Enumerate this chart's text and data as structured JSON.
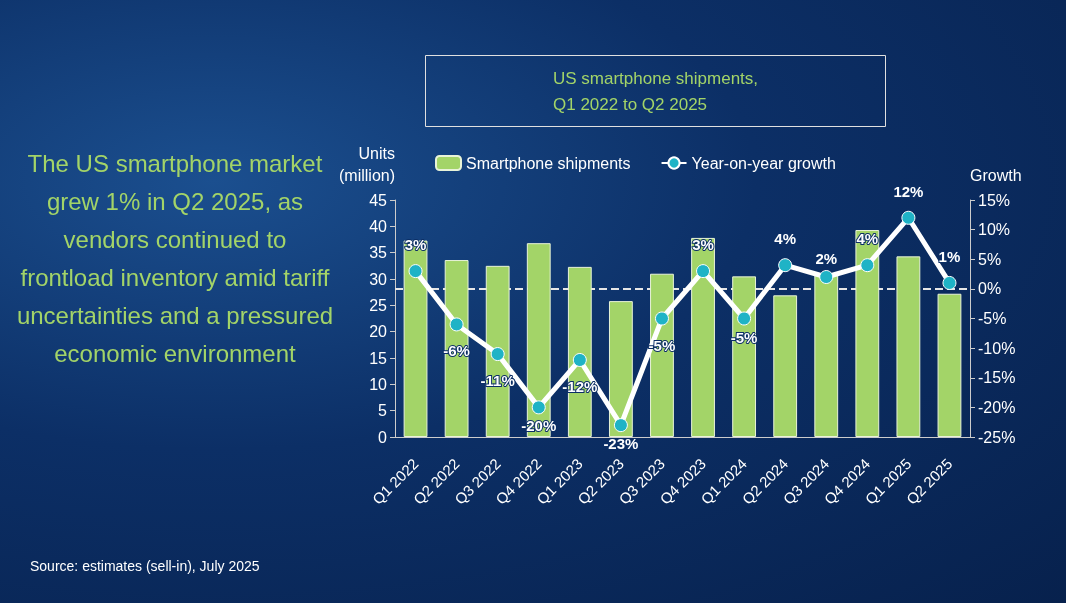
{
  "chart_data": {
    "type": "bar",
    "title": "US smartphone shipments,\nQ1 2022 to Q2 2025",
    "ylabel": "Units\n(million)",
    "y2label": "Growth",
    "annotations": [
      "The US smartphone market grew 1% in Q2 2025, as vendors continued to frontload inventory amid tariff uncertainties and a pressured economic environment",
      "Source: estimates (sell-in), July 2025"
    ],
    "categories": [
      "Q1 2022",
      "Q2 2022",
      "Q3 2022",
      "Q4 2022",
      "Q1 2023",
      "Q2 2023",
      "Q3 2023",
      "Q4 2023",
      "Q1 2024",
      "Q2 2024",
      "Q3 2024",
      "Q4 2024",
      "Q1 2025",
      "Q2 2025"
    ],
    "series": [
      {
        "name": "Smartphone shipments",
        "color": "#a3d468",
        "values": [
          37.3,
          33.6,
          32.5,
          36.8,
          32.3,
          25.8,
          31.0,
          37.8,
          30.5,
          26.9,
          30.9,
          39.3,
          34.3,
          27.2
        ]
      },
      {
        "name": "Year-on-year growth",
        "type": "line",
        "axis": "y2",
        "color": "#ffffff",
        "values": [
          3,
          -6,
          -11,
          -20,
          -12,
          -23,
          -5,
          3,
          -5,
          4,
          2,
          4,
          12,
          1
        ],
        "value_labels": [
          "3%",
          "-6%",
          "-11%",
          "-20%",
          "-12%",
          "-23%",
          "-5%",
          "3%",
          "-5%",
          "4%",
          "2%",
          "4%",
          "12%",
          "1%"
        ]
      }
    ],
    "ylim": [
      0,
      45
    ],
    "yticks": [
      0,
      5,
      10,
      15,
      20,
      25,
      30,
      35,
      40,
      45
    ],
    "y2lim": [
      -25,
      15
    ],
    "y2ticks": [
      {
        "value": -25,
        "label": "-25%"
      },
      {
        "value": -20,
        "label": "-20%"
      },
      {
        "value": -15,
        "label": "-15%"
      },
      {
        "value": -10,
        "label": "-10%"
      },
      {
        "value": -5,
        "label": "-5%"
      },
      {
        "value": 0,
        "label": "0%"
      },
      {
        "value": 5,
        "label": "5%"
      },
      {
        "value": 10,
        "label": "10%"
      },
      {
        "value": 15,
        "label": "15%"
      }
    ],
    "ref_lines": [
      {
        "axis": "y2",
        "value": 0,
        "color": "#e6e6e6",
        "line_style": "dashed"
      }
    ],
    "marker": "circle",
    "legend": "top",
    "grid": false
  }
}
